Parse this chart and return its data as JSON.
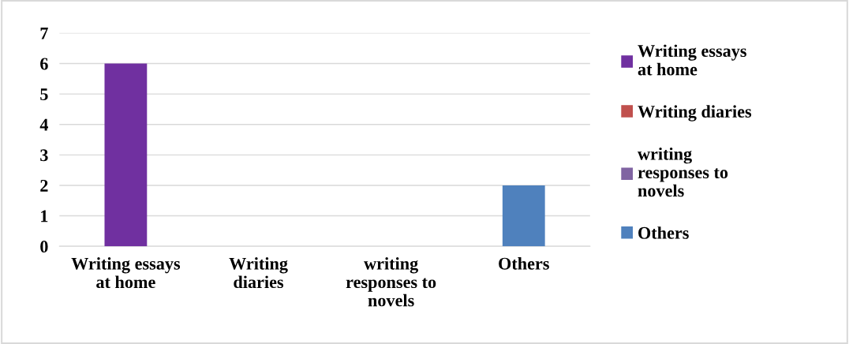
{
  "chart_data": {
    "type": "bar",
    "stacked": true,
    "categories": [
      "Writing essays\nat home",
      "Writing\ndiaries",
      "writing\nresponses to\nnovels",
      "Others"
    ],
    "series": [
      {
        "name": "Writing essays\nat home",
        "color": "#7030a0",
        "values": [
          6,
          null,
          null,
          null
        ]
      },
      {
        "name": "Writing diaries",
        "color": "#c0504d",
        "values": [
          null,
          0,
          null,
          null
        ]
      },
      {
        "name": "writing\nresponses to\nnovels",
        "color": "#8064a2",
        "values": [
          null,
          null,
          0,
          null
        ]
      },
      {
        "name": "Others",
        "color": "#4f81bd",
        "values": [
          null,
          null,
          null,
          2
        ]
      }
    ],
    "ylim": [
      0,
      7
    ],
    "yticks": [
      0,
      1,
      2,
      3,
      4,
      5,
      6,
      7
    ],
    "grid": "y",
    "legend": "right"
  }
}
